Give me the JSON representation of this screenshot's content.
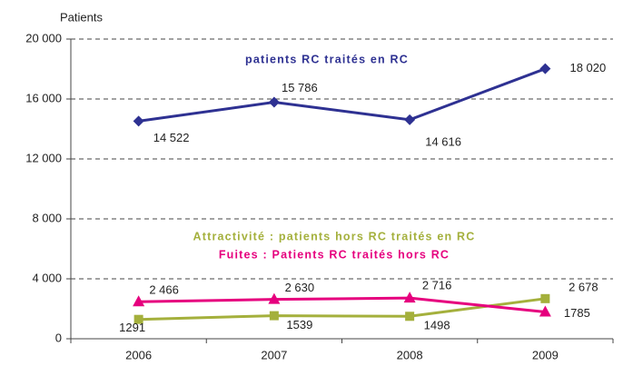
{
  "chart_data": {
    "type": "line",
    "y_label": "Patients",
    "categories": [
      "2006",
      "2007",
      "2008",
      "2009"
    ],
    "series": [
      {
        "name": "patients RC traités en RC",
        "color": "#2e3192",
        "marker": "diamond",
        "values": [
          14522,
          15786,
          14616,
          18020
        ],
        "value_labels": [
          "14 522",
          "15 786",
          "14 616",
          "18 020"
        ]
      },
      {
        "name": "Attractivité : patients hors RC traités en RC",
        "color": "#a4b03c",
        "marker": "square",
        "values": [
          1291,
          1539,
          1498,
          2678
        ],
        "value_labels": [
          "1291",
          "1539",
          "1498",
          "2 678"
        ]
      },
      {
        "name": "Fuites : Patients RC traités hors RC",
        "color": "#e6007e",
        "marker": "triangle",
        "values": [
          2466,
          2630,
          2716,
          1785
        ],
        "value_labels": [
          "2 466",
          "2 630",
          "2 716",
          "1785"
        ]
      }
    ],
    "ylim": [
      0,
      20000
    ],
    "yticks": [
      0,
      {
        "value": 4000,
        "label": "4 000"
      },
      {
        "value": 8000,
        "label": "8 000"
      },
      {
        "value": 12000,
        "label": "12 000"
      },
      {
        "value": 16000,
        "label": "16 000"
      },
      {
        "value": 20000,
        "label": "20 000"
      }
    ],
    "grid": true
  }
}
